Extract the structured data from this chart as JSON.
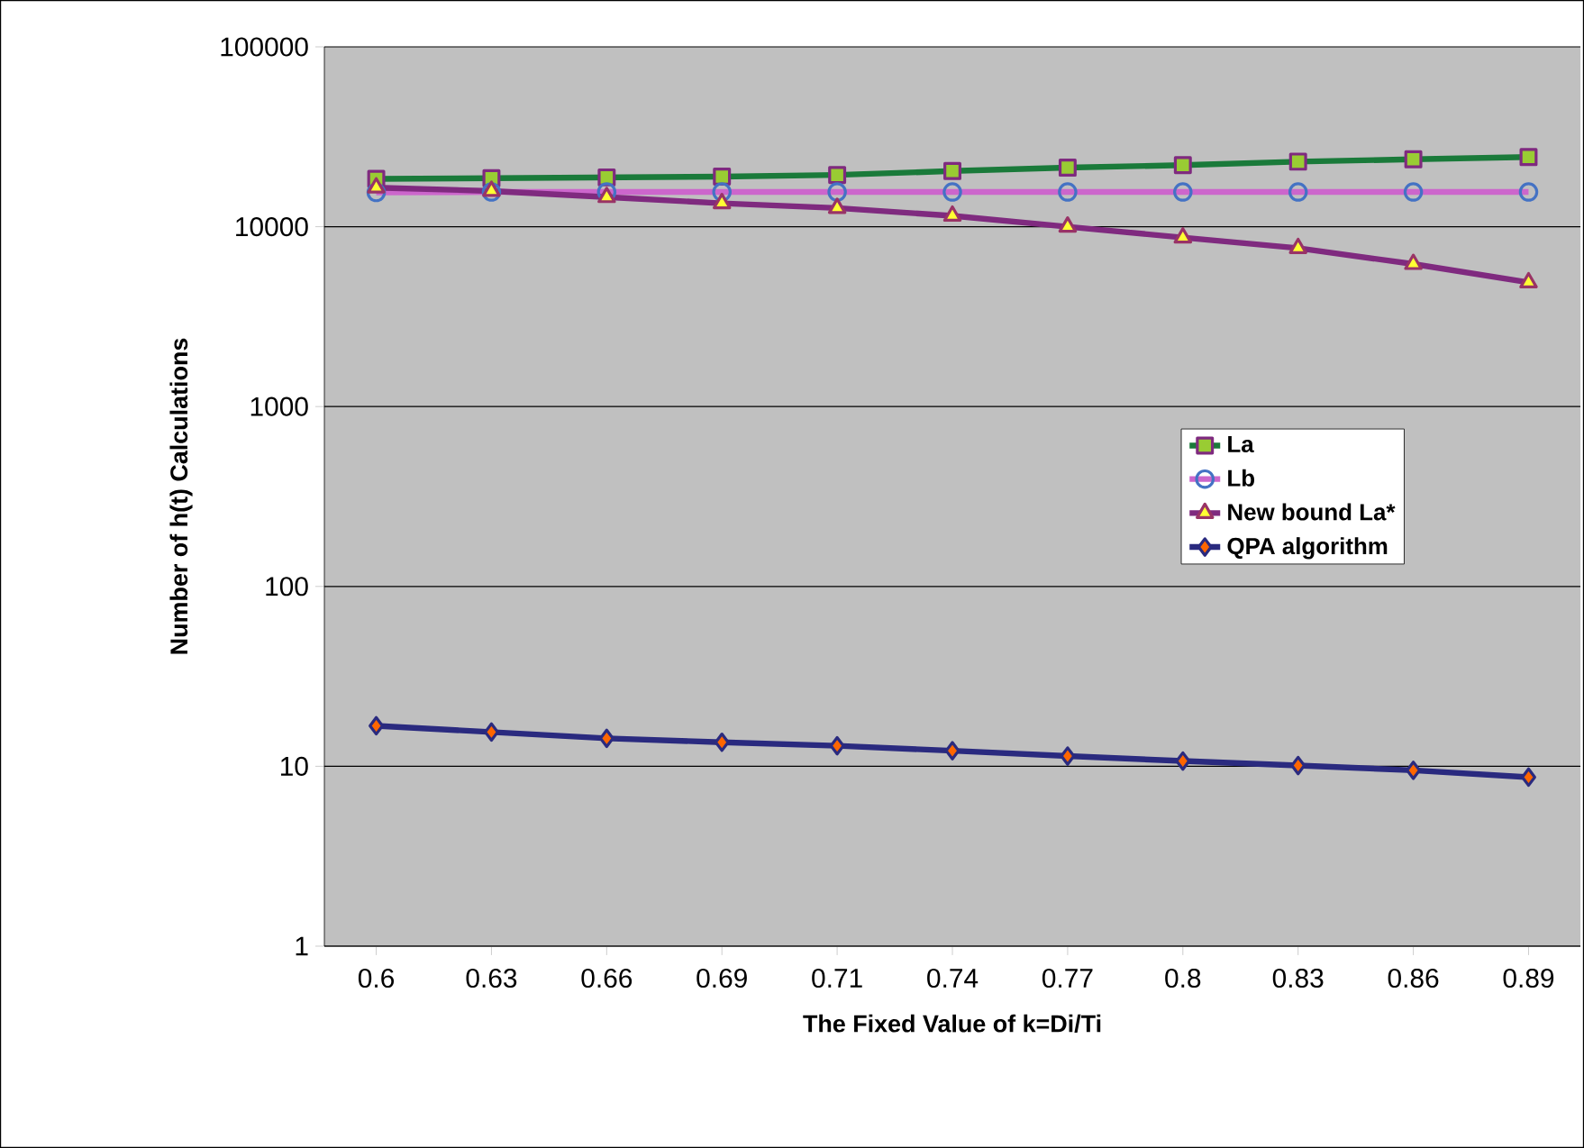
{
  "chart_data": {
    "type": "line",
    "xlabel": "The Fixed Value of k=Di/Ti",
    "ylabel": "Number of h(t) Calculations",
    "categories": [
      "0.6",
      "0.63",
      "0.66",
      "0.69",
      "0.71",
      "0.74",
      "0.77",
      "0.8",
      "0.83",
      "0.86",
      "0.89"
    ],
    "series": [
      {
        "name": "La",
        "color": "#1a7a3a",
        "marker": "square",
        "values": [
          18450,
          18600,
          18800,
          19000,
          19400,
          20400,
          21300,
          22000,
          23000,
          23700,
          24400
        ]
      },
      {
        "name": "Lb",
        "color": "#cc66cc",
        "marker": "circle",
        "values": [
          15500,
          15600,
          15600,
          15600,
          15600,
          15600,
          15600,
          15600,
          15600,
          15600,
          15600
        ]
      },
      {
        "name": "New bound La*",
        "color": "#7f2a7f",
        "marker": "triangle",
        "values": [
          16500,
          15800,
          14600,
          13500,
          12700,
          11500,
          10000,
          8700,
          7600,
          6200,
          4900
        ]
      },
      {
        "name": "QPA algorithm",
        "color": "#2a2a7f",
        "marker": "diamond",
        "values": [
          16.8,
          15.5,
          14.3,
          13.6,
          13.0,
          12.2,
          11.4,
          10.7,
          10.1,
          9.5,
          8.7
        ]
      }
    ],
    "log": true,
    "ylim": [
      1,
      100000
    ],
    "yticks": [
      1,
      10,
      100,
      1000,
      10000,
      100000
    ],
    "grid": "y",
    "legend": "right",
    "line_style": "solid"
  }
}
